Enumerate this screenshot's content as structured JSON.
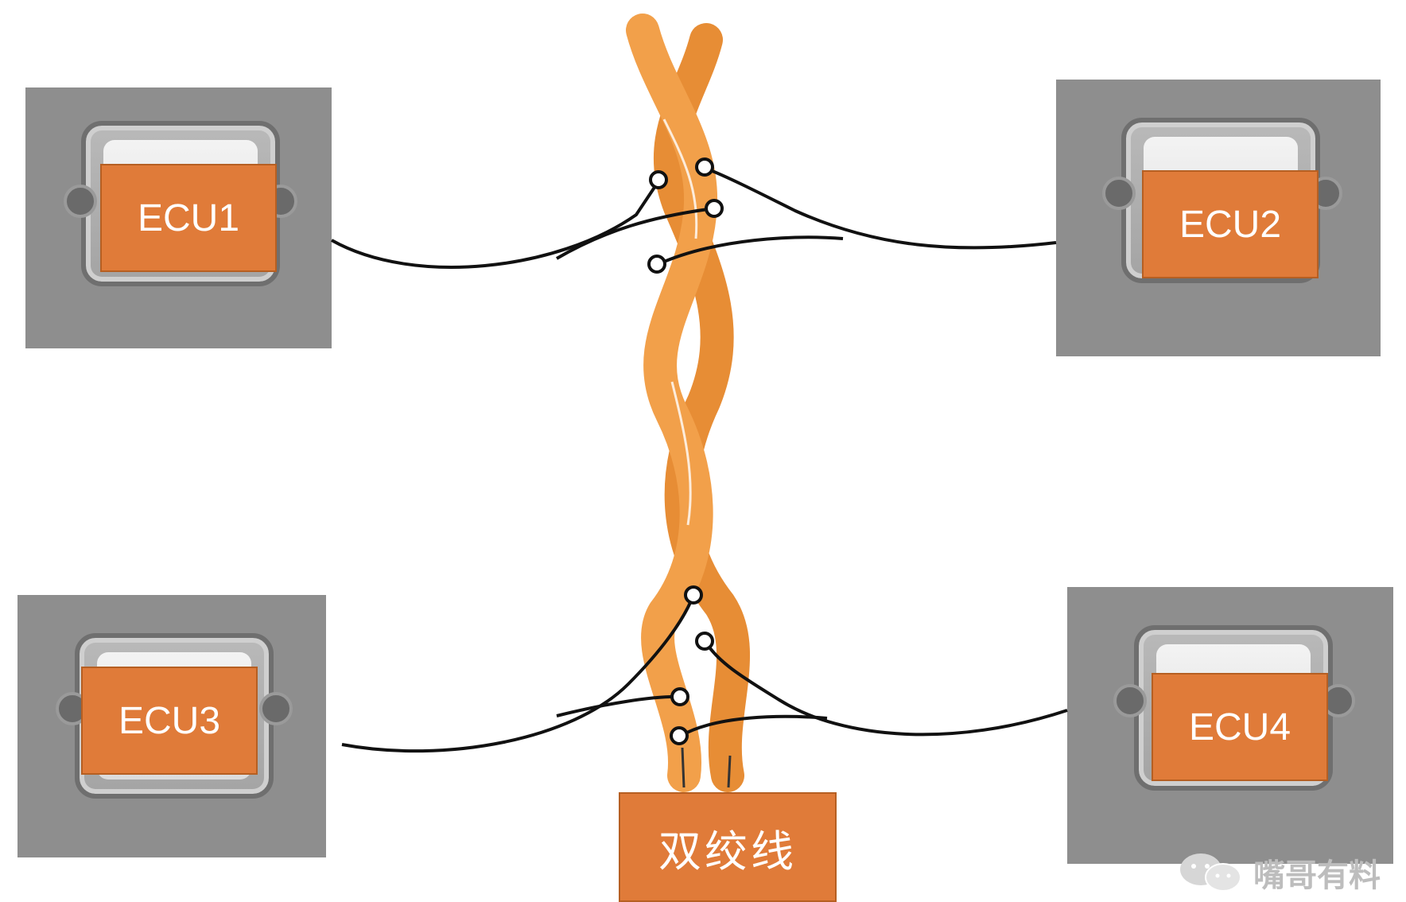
{
  "ecus": [
    {
      "id": "ecu1",
      "label": "ECU1"
    },
    {
      "id": "ecu2",
      "label": "ECU2"
    },
    {
      "id": "ecu3",
      "label": "ECU3"
    },
    {
      "id": "ecu4",
      "label": "ECU4"
    }
  ],
  "cable": {
    "label": "双绞线"
  },
  "watermark": {
    "text": "嘴哥有料",
    "icon": "wechat-icon"
  },
  "colors": {
    "wire": "#f0a14a",
    "label": "#e07b39",
    "line": "#111111",
    "photo": "#8e8e8e"
  }
}
